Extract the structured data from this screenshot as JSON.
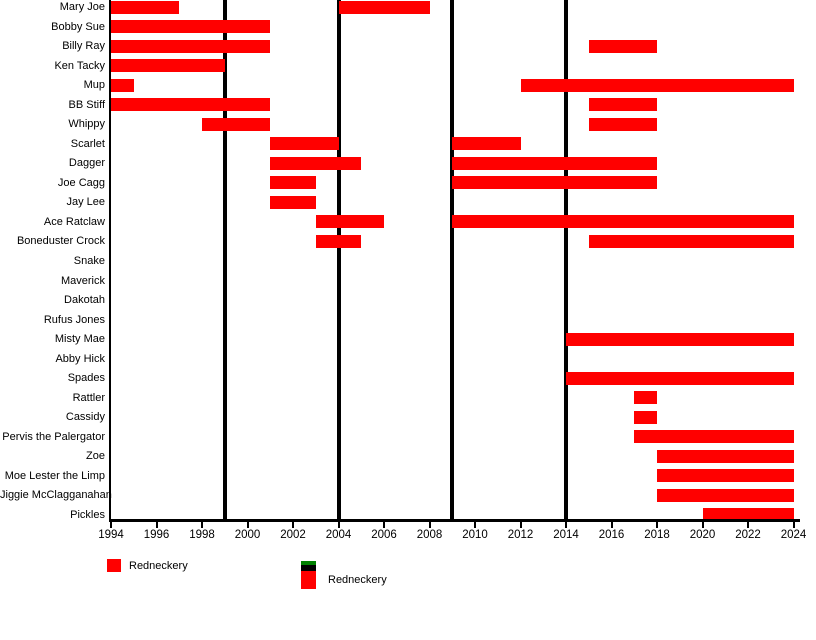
{
  "chart_data": {
    "type": "bar",
    "subtype": "gantt-timeline",
    "title": "",
    "xlabel": "",
    "ylabel": "",
    "grid": false,
    "xlim": [
      1994,
      2024
    ],
    "x_tick_years": [
      1994,
      1996,
      1998,
      2000,
      2002,
      2004,
      2006,
      2008,
      2010,
      2012,
      2014,
      2016,
      2018,
      2020,
      2022,
      2024
    ],
    "x_tick_labels": [
      "1994",
      "1996",
      "1998",
      "2000",
      "2002",
      "2004",
      "2006",
      "2008",
      "2010",
      "2012",
      "2014",
      "2016",
      "2018",
      "2020",
      "2022",
      "2024"
    ],
    "event_line_years": [
      1999,
      2004,
      2009,
      2014
    ],
    "rows": [
      {
        "name": "Mary Joe",
        "intervals": [
          [
            1994,
            1997
          ],
          [
            2004,
            2008
          ]
        ]
      },
      {
        "name": "Bobby Sue",
        "intervals": [
          [
            1994,
            2001
          ]
        ]
      },
      {
        "name": "Billy Ray",
        "intervals": [
          [
            1994,
            2001
          ],
          [
            2015,
            2018
          ]
        ]
      },
      {
        "name": "Ken Tacky",
        "intervals": [
          [
            1994,
            1999
          ]
        ]
      },
      {
        "name": "Mup",
        "intervals": [
          [
            1994,
            1995
          ],
          [
            2012,
            2024
          ]
        ]
      },
      {
        "name": "BB Stiff",
        "intervals": [
          [
            1994,
            2001
          ],
          [
            2015,
            2018
          ]
        ]
      },
      {
        "name": "Whippy",
        "intervals": [
          [
            1998,
            2001
          ],
          [
            2015,
            2018
          ]
        ]
      },
      {
        "name": "Scarlet",
        "intervals": [
          [
            2001,
            2004
          ],
          [
            2009,
            2012
          ]
        ]
      },
      {
        "name": "Dagger",
        "intervals": [
          [
            2001,
            2005
          ],
          [
            2009,
            2018
          ]
        ]
      },
      {
        "name": "Joe Cagg",
        "intervals": [
          [
            2001,
            2003
          ],
          [
            2009,
            2018
          ]
        ]
      },
      {
        "name": "Jay Lee",
        "intervals": [
          [
            2001,
            2003
          ]
        ]
      },
      {
        "name": "Ace Ratclaw",
        "intervals": [
          [
            2003,
            2006
          ],
          [
            2009,
            2024
          ]
        ]
      },
      {
        "name": "Boneduster Crock",
        "intervals": [
          [
            2003,
            2005
          ],
          [
            2015,
            2024
          ]
        ]
      },
      {
        "name": "Snake",
        "intervals": []
      },
      {
        "name": "Maverick",
        "intervals": []
      },
      {
        "name": "Dakotah",
        "intervals": []
      },
      {
        "name": "Rufus Jones",
        "intervals": []
      },
      {
        "name": "Misty Mae",
        "intervals": [
          [
            2014,
            2024
          ]
        ]
      },
      {
        "name": "Abby Hick",
        "intervals": []
      },
      {
        "name": "Spades",
        "intervals": [
          [
            2014,
            2024
          ]
        ]
      },
      {
        "name": "Rattler",
        "intervals": [
          [
            2017,
            2018
          ]
        ]
      },
      {
        "name": "Cassidy",
        "intervals": [
          [
            2017,
            2018
          ]
        ]
      },
      {
        "name": "Pervis the Palergator",
        "intervals": [
          [
            2017,
            2024
          ]
        ]
      },
      {
        "name": "Zoe",
        "intervals": [
          [
            2018,
            2024
          ]
        ]
      },
      {
        "name": "Moe Lester the Limp",
        "intervals": [
          [
            2018,
            2024
          ]
        ]
      },
      {
        "name": "Jiggie McClagganahan",
        "intervals": [
          [
            2018,
            2024
          ]
        ]
      },
      {
        "name": "Pickles",
        "intervals": [
          [
            2020,
            2024
          ]
        ]
      }
    ],
    "legend_position": "bottom"
  },
  "legend": {
    "entries": [
      {
        "label": "Redneckery",
        "swatch": "red-square"
      },
      {
        "label": "Redneckery",
        "swatch": "green-black-red-stacked"
      }
    ]
  },
  "colors": {
    "bar": "#ff0000",
    "line": "#000000",
    "text": "#000000",
    "background": "#ffffff",
    "legend_green": "#008000"
  }
}
